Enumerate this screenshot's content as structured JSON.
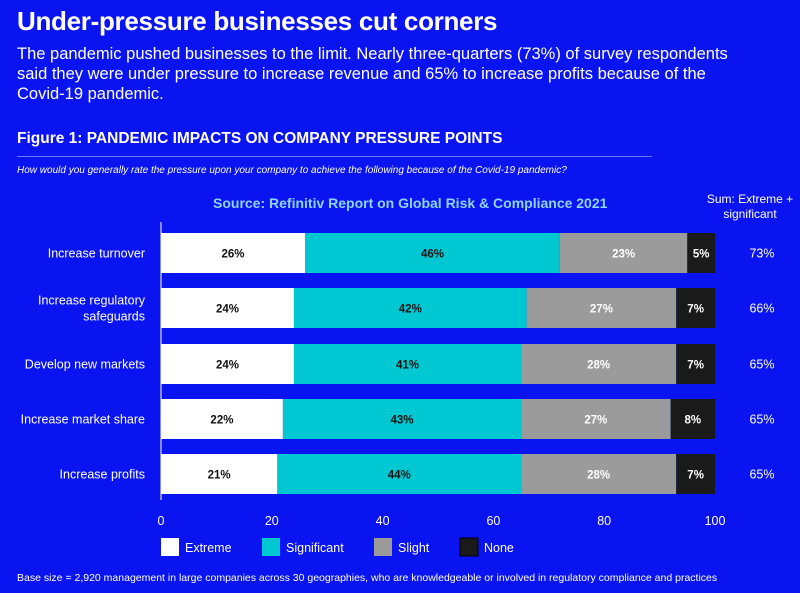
{
  "headline": "Under-pressure businesses cut corners",
  "intro": "The pandemic pushed businesses to the limit. Nearly three-quarters (73%) of survey respondents said they were under pressure to increase revenue and 65% to increase profits because of the Covid-19 pandemic.",
  "figure_title": "Figure 1: PANDEMIC IMPACTS ON COMPANY PRESSURE POINTS",
  "question": "How would you generally rate the pressure upon your company to achieve the following because of the Covid-19 pandemic?",
  "source": "Source: Refinitiv Report on Global Risk & Compliance 2021",
  "sum_header": "Sum: Extreme + significant",
  "footnote": "Base size = 2,920 management in large companies across 30 geographies, who are knowledgeable or involved in regulatory compliance and practices",
  "colors": {
    "background": "#0a14f0",
    "extreme": "#ffffff",
    "significant": "#00c8d2",
    "slight": "#9b9b9b",
    "none": "#1a1a1a"
  },
  "chart_data": {
    "type": "bar",
    "orientation": "horizontal",
    "stacked": true,
    "categories": [
      "Increase turnover",
      "Increase regulatory safeguards",
      "Develop new markets",
      "Increase market share",
      "Increase profits"
    ],
    "category_lines": [
      [
        "Increase turnover"
      ],
      [
        "Increase regulatory",
        "safeguards"
      ],
      [
        "Develop new markets"
      ],
      [
        "Increase market share"
      ],
      [
        "Increase profits"
      ]
    ],
    "series": [
      {
        "name": "Extreme",
        "values": [
          26,
          24,
          24,
          22,
          21
        ],
        "labels": [
          "26%",
          "24%",
          "24%",
          "22%",
          "21%"
        ]
      },
      {
        "name": "Significant",
        "values": [
          46,
          42,
          41,
          43,
          44
        ],
        "labels": [
          "46%",
          "42%",
          "41%",
          "43%",
          "44%"
        ]
      },
      {
        "name": "Slight",
        "values": [
          23,
          27,
          28,
          27,
          28
        ],
        "labels": [
          "23%",
          "27%",
          "28%",
          "27%",
          "28%"
        ]
      },
      {
        "name": "None",
        "values": [
          5,
          7,
          7,
          8,
          7
        ],
        "labels": [
          "5%",
          "7%",
          "7%",
          "8%",
          "7%"
        ]
      }
    ],
    "sum_values": [
      73,
      66,
      65,
      65,
      65
    ],
    "sum_labels": [
      "73%",
      "66%",
      "65%",
      "65%",
      "65%"
    ],
    "xlim": [
      0,
      100
    ],
    "xticks": [
      0,
      20,
      40,
      60,
      80,
      100
    ],
    "xtick_labels": [
      "0",
      "20",
      "40",
      "60",
      "80",
      "100"
    ],
    "legend_position": "bottom-left",
    "grid": false
  }
}
